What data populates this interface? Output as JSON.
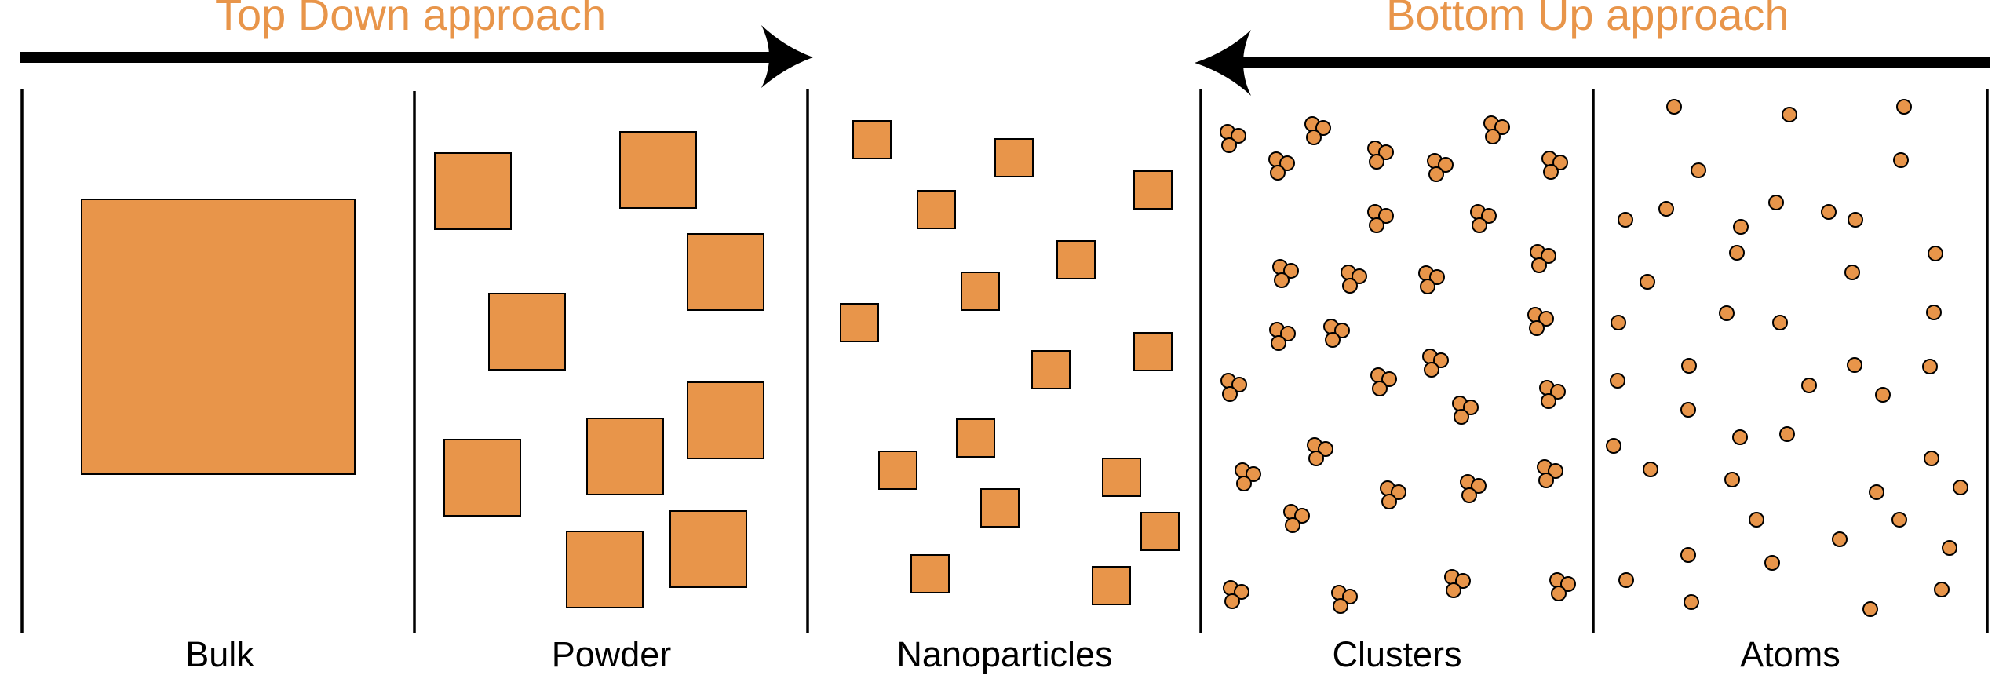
{
  "top_down": {
    "title": "Top Down approach"
  },
  "bottom_up": {
    "title": "Bottom Up approach"
  },
  "panels": [
    {
      "label": "Bulk"
    },
    {
      "label": "Powder"
    },
    {
      "label": "Nanoparticles"
    },
    {
      "label": "Clusters"
    },
    {
      "label": "Atoms"
    }
  ],
  "colors": {
    "particle_fill": "#E8954A",
    "title_text": "#E8954A",
    "outline": "#000000"
  },
  "icons": [
    "right-arrow-icon",
    "left-arrow-icon"
  ]
}
